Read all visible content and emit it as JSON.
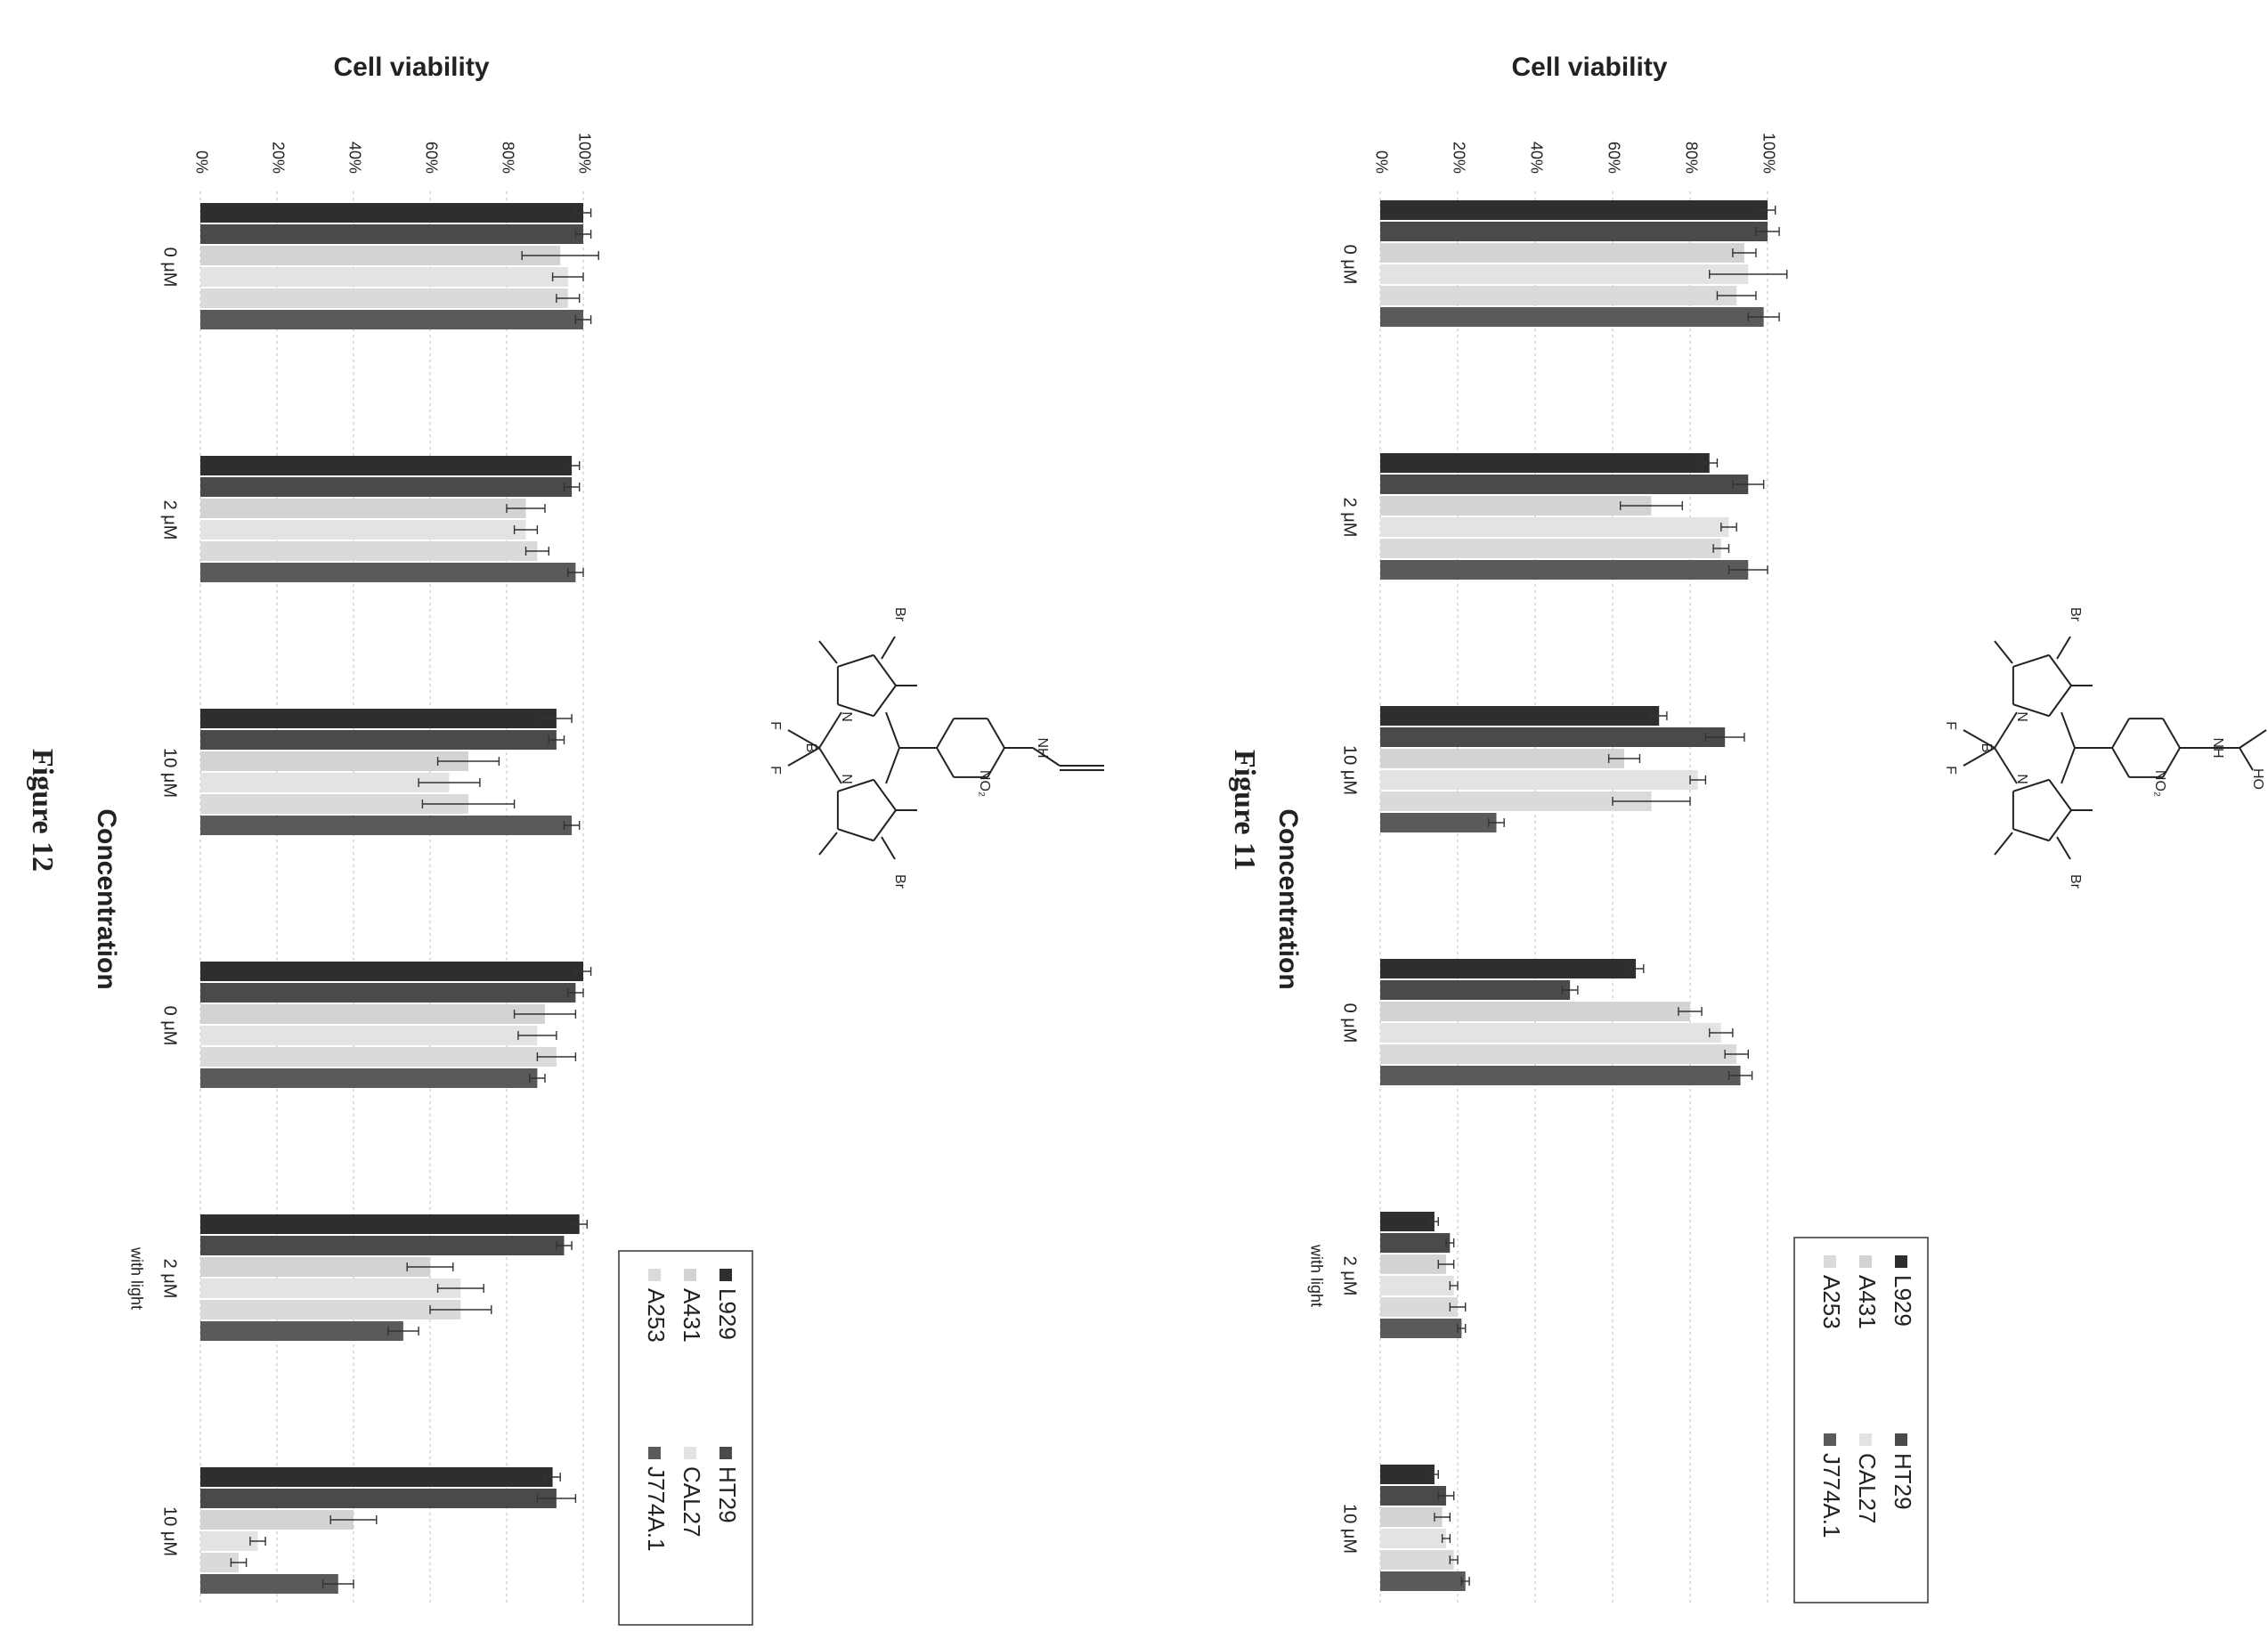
{
  "figures": [
    {
      "caption": "Figure 11",
      "molecule_substituent": "HO / HO diol",
      "chart_data": {
        "type": "bar",
        "title": "Cell viability",
        "xlabel": "Concentration",
        "ylabel": "",
        "ylim": [
          0,
          100
        ],
        "yticks": [
          "0%",
          "20%",
          "40%",
          "60%",
          "80%",
          "100%"
        ],
        "categories": [
          "0 μM",
          "2 μM",
          "10 μM",
          "0 μM",
          "2 μM",
          "10 μM"
        ],
        "category_note": {
          "index": 4,
          "text": "with light"
        },
        "series": [
          {
            "name": "L929",
            "values": [
              100,
              85,
              72,
              66,
              14,
              14
            ],
            "errors": [
              2,
              2,
              2,
              2,
              1,
              1
            ]
          },
          {
            "name": "HT29",
            "values": [
              100,
              95,
              89,
              49,
              18,
              17
            ],
            "errors": [
              3,
              4,
              5,
              2,
              1,
              2
            ]
          },
          {
            "name": "A431",
            "values": [
              94,
              70,
              63,
              80,
              17,
              16
            ],
            "errors": [
              3,
              8,
              4,
              3,
              2,
              2
            ]
          },
          {
            "name": "CAL27",
            "values": [
              95,
              90,
              82,
              88,
              19,
              17
            ],
            "errors": [
              10,
              2,
              2,
              3,
              1,
              1
            ]
          },
          {
            "name": "A253",
            "values": [
              92,
              88,
              70,
              92,
              20,
              19
            ],
            "errors": [
              5,
              2,
              10,
              3,
              2,
              1
            ]
          },
          {
            "name": "J774A.1",
            "values": [
              99,
              95,
              30,
              93,
              21,
              22
            ],
            "errors": [
              4,
              5,
              2,
              3,
              1,
              1
            ]
          }
        ],
        "legend_position": "right",
        "grid": true
      }
    },
    {
      "caption": "Figure 12",
      "molecule_substituent": "propargyl amine",
      "chart_data": {
        "type": "bar",
        "title": "Cell viability",
        "xlabel": "Concentration",
        "ylabel": "",
        "ylim": [
          0,
          100
        ],
        "yticks": [
          "0%",
          "20%",
          "40%",
          "60%",
          "80%",
          "100%"
        ],
        "categories": [
          "0 μM",
          "2 μM",
          "10 μM",
          "0 μM",
          "2 μM",
          "10 μM"
        ],
        "category_note": {
          "index": 4,
          "text": "with light"
        },
        "series": [
          {
            "name": "L929",
            "values": [
              100,
              97,
              93,
              100,
              99,
              92
            ],
            "errors": [
              2,
              2,
              4,
              2,
              2,
              2
            ]
          },
          {
            "name": "HT29",
            "values": [
              100,
              97,
              93,
              98,
              95,
              93
            ],
            "errors": [
              2,
              2,
              2,
              2,
              2,
              5
            ]
          },
          {
            "name": "A431",
            "values": [
              94,
              85,
              70,
              90,
              60,
              40
            ],
            "errors": [
              10,
              5,
              8,
              8,
              6,
              6
            ]
          },
          {
            "name": "CAL27",
            "values": [
              96,
              85,
              65,
              88,
              68,
              15
            ],
            "errors": [
              4,
              3,
              8,
              5,
              6,
              2
            ]
          },
          {
            "name": "A253",
            "values": [
              96,
              88,
              70,
              93,
              68,
              10
            ],
            "errors": [
              3,
              3,
              12,
              5,
              8,
              2
            ]
          },
          {
            "name": "J774A.1",
            "values": [
              100,
              98,
              97,
              88,
              53,
              36
            ],
            "errors": [
              2,
              2,
              2,
              2,
              4,
              4
            ]
          }
        ],
        "legend_position": "right",
        "grid": true
      }
    }
  ],
  "molecules": [
    {
      "labels": [
        "HO",
        "HO",
        "NH",
        "NO₂",
        "Br",
        "Br",
        "N",
        "N",
        "B",
        "F",
        "F"
      ]
    },
    {
      "labels": [
        "NH",
        "NO₂",
        "Br",
        "Br",
        "N",
        "N",
        "B",
        "F",
        "F"
      ]
    }
  ],
  "colors": {
    "L929": "#2e2e2e",
    "HT29": "#4a4a4a",
    "A431": "#d3d3d3",
    "CAL27": "#e3e3e3",
    "A253": "#dadada",
    "J774A.1": "#5a5a5a"
  }
}
